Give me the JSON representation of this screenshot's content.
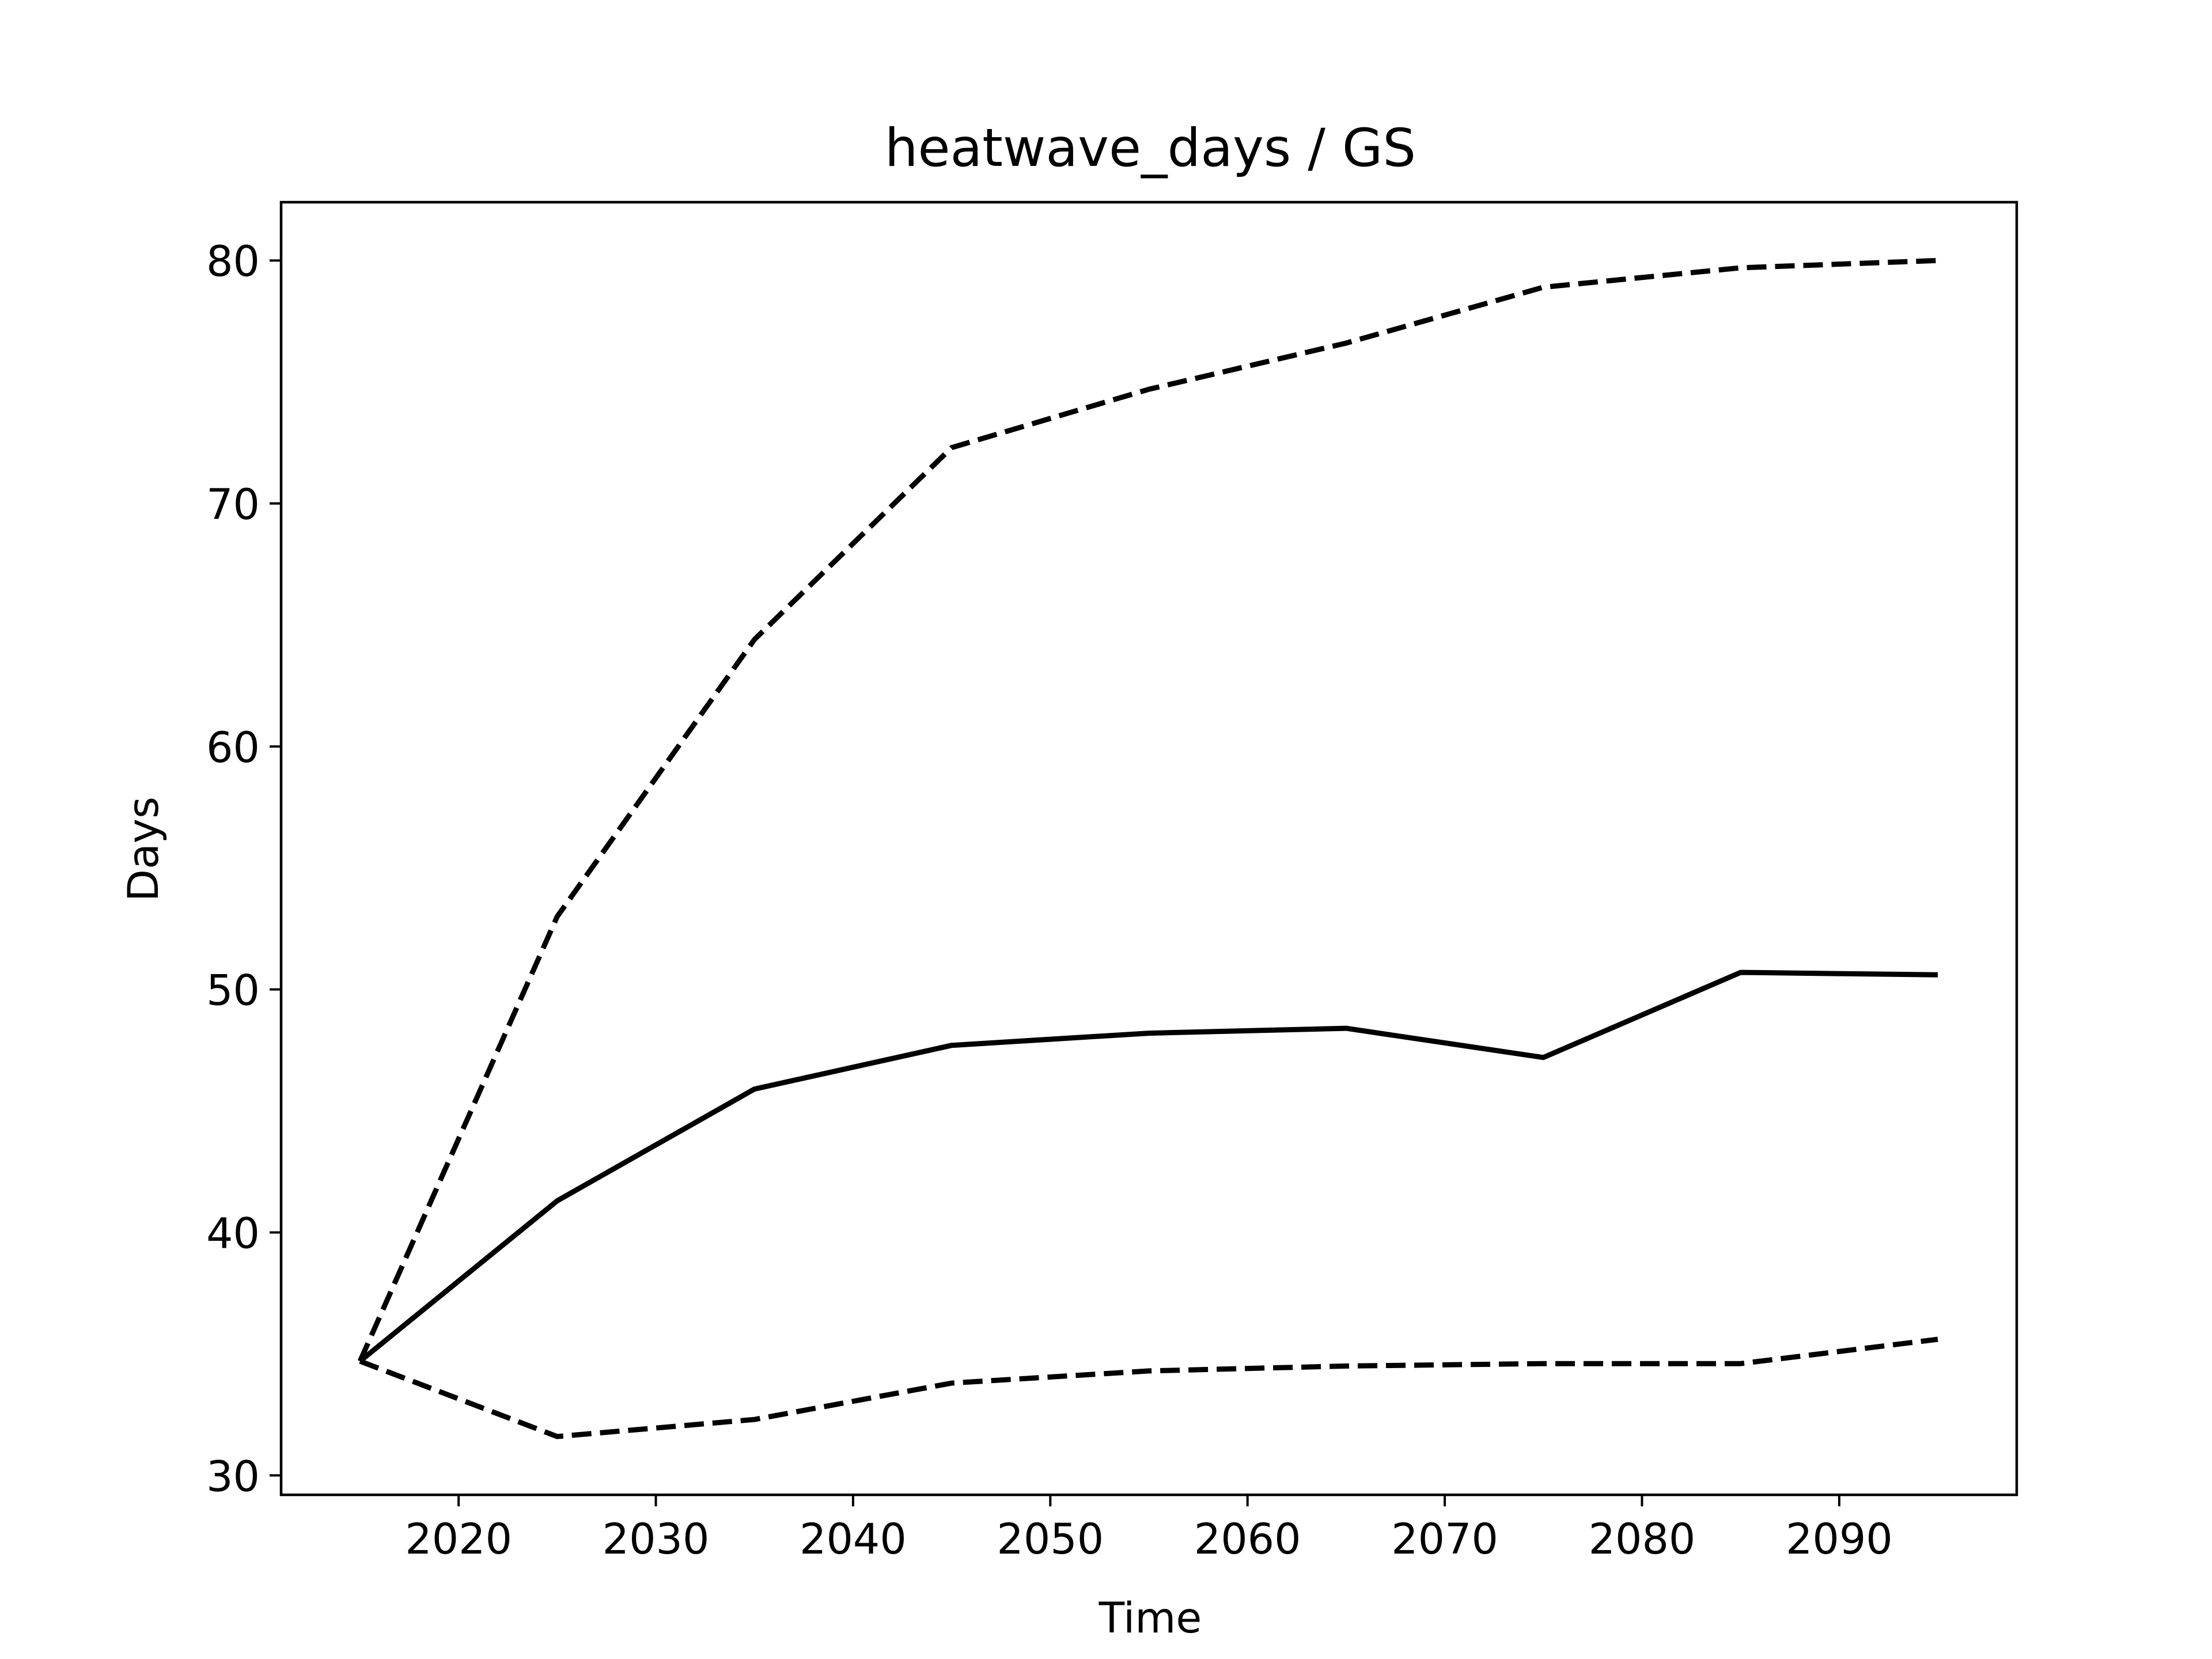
{
  "chart_data": {
    "type": "line",
    "title": "heatwave_days / GS",
    "xlabel": "Time",
    "ylabel": "Days",
    "xlim": [
      2011,
      2099
    ],
    "ylim": [
      29.2,
      82.4
    ],
    "xticks": [
      2020,
      2030,
      2040,
      2050,
      2060,
      2070,
      2080,
      2090
    ],
    "yticks": [
      30,
      40,
      50,
      60,
      70,
      80
    ],
    "grid": false,
    "legend": "none",
    "x": [
      2015,
      2025,
      2035,
      2045,
      2055,
      2065,
      2075,
      2085,
      2095
    ],
    "series": [
      {
        "line_style": "dashed",
        "color": "#000000",
        "values": [
          34.7,
          53.0,
          64.4,
          72.3,
          74.7,
          76.6,
          78.9,
          79.7,
          80.0
        ]
      },
      {
        "line_style": "solid",
        "color": "#000000",
        "values": [
          34.7,
          41.3,
          45.9,
          47.7,
          48.2,
          48.4,
          47.2,
          50.7,
          50.6
        ]
      },
      {
        "line_style": "dashed",
        "color": "#000000",
        "values": [
          34.7,
          31.6,
          32.3,
          33.8,
          34.3,
          34.5,
          34.6,
          34.6,
          35.6
        ]
      }
    ]
  }
}
